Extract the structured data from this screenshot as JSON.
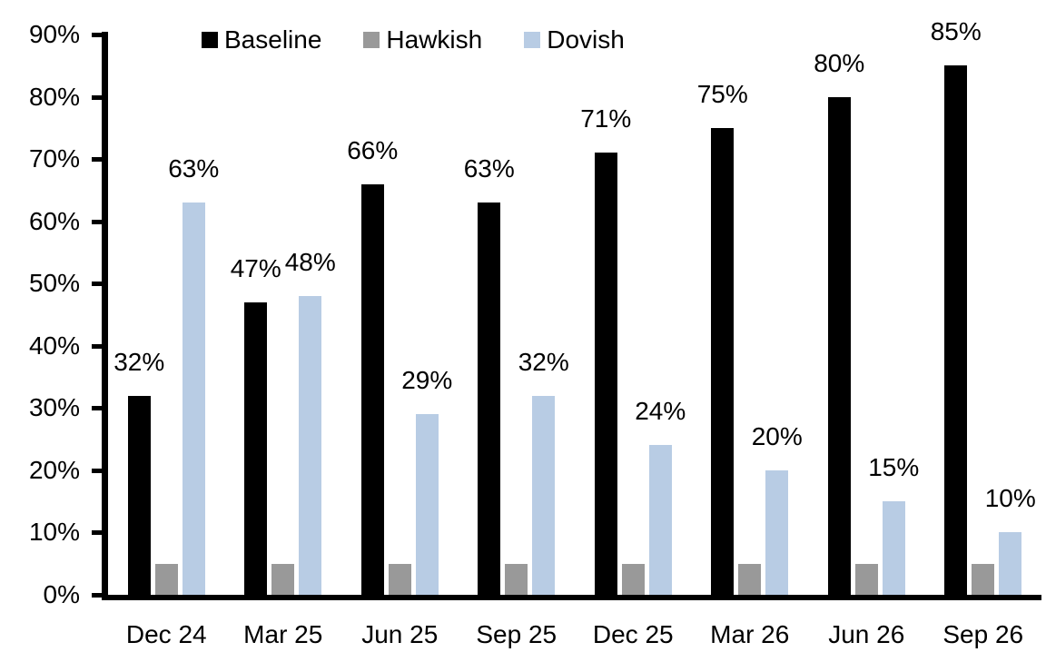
{
  "chart_data": {
    "type": "bar",
    "title": "",
    "xlabel": "",
    "ylabel": "",
    "categories": [
      "Dec 24",
      "Mar 25",
      "Jun 25",
      "Sep 25",
      "Dec 25",
      "Mar 26",
      "Jun 26",
      "Sep 26"
    ],
    "series": [
      {
        "name": "Baseline",
        "color": "#000000",
        "values": [
          32,
          47,
          66,
          63,
          71,
          75,
          80,
          85
        ],
        "labels": [
          "32%",
          "47%",
          "66%",
          "63%",
          "71%",
          "75%",
          "80%",
          "85%"
        ],
        "labels_visible": true
      },
      {
        "name": "Hawkish",
        "color": "#999999",
        "values": [
          5,
          5,
          5,
          5,
          5,
          5,
          5,
          5
        ],
        "labels": [],
        "labels_visible": false
      },
      {
        "name": "Dovish",
        "color": "#B8CCE4",
        "values": [
          63,
          48,
          29,
          32,
          24,
          20,
          15,
          10
        ],
        "labels": [
          "63%",
          "48%",
          "29%",
          "32%",
          "24%",
          "20%",
          "15%",
          "10%"
        ],
        "labels_visible": true
      }
    ],
    "y_ticks": [
      "0%",
      "10%",
      "20%",
      "30%",
      "40%",
      "50%",
      "60%",
      "70%",
      "80%",
      "90%"
    ],
    "ylim": [
      0,
      90
    ],
    "y_step": 10,
    "grid": false,
    "legend_position": "top"
  }
}
